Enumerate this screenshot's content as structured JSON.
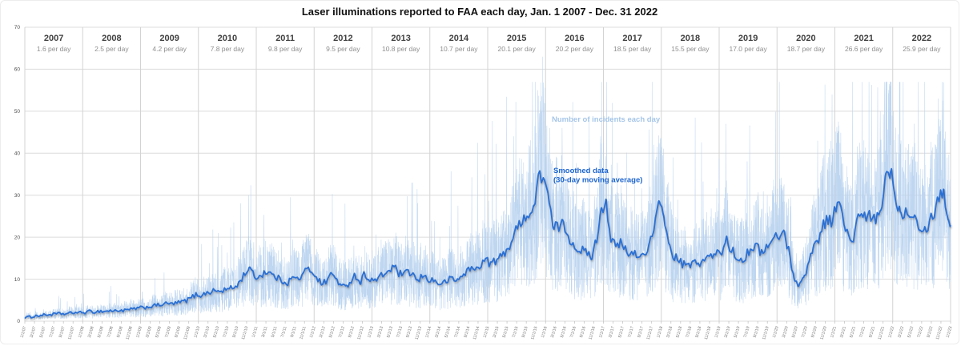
{
  "chart_data": {
    "type": "line",
    "title": "Laser illuminations reported to FAA each day, Jan. 1 2007 - Dec. 31 2022",
    "xlabel": "",
    "ylabel": "",
    "ylim": [
      0,
      70
    ],
    "yticks": [
      0,
      10,
      20,
      30,
      40,
      50,
      60,
      70
    ],
    "grid": true,
    "legend_position": "none",
    "years": [
      {
        "label": "2007",
        "avg": "1.6 per day"
      },
      {
        "label": "2008",
        "avg": "2.5 per day"
      },
      {
        "label": "2009",
        "avg": "4.2 per day"
      },
      {
        "label": "2010",
        "avg": "7.8 per day"
      },
      {
        "label": "2011",
        "avg": "9.8 per day"
      },
      {
        "label": "2012",
        "avg": "9.5 per day"
      },
      {
        "label": "2013",
        "avg": "10.8 per day"
      },
      {
        "label": "2014",
        "avg": "10.7 per day"
      },
      {
        "label": "2015",
        "avg": "20.1 per day"
      },
      {
        "label": "2016",
        "avg": "20.2 per day"
      },
      {
        "label": "2017",
        "avg": "18.5 per day"
      },
      {
        "label": "2018",
        "avg": "15.5 per day"
      },
      {
        "label": "2019",
        "avg": "17.0 per day"
      },
      {
        "label": "2020",
        "avg": "18.7 per day"
      },
      {
        "label": "2021",
        "avg": "26.6 per day"
      },
      {
        "label": "2022",
        "avg": "25.9 per day"
      }
    ],
    "annotations": {
      "daily_label": "Number of incidents each day",
      "smoothed_label_line1": "Smoothed data",
      "smoothed_label_line2": "(30-day moving average)"
    },
    "series": [
      {
        "name": "Number of incidents each day",
        "kind": "daily-raw",
        "color": "#b7d2ee"
      },
      {
        "name": "Smoothed data (30-day moving average)",
        "kind": "smoothed-line",
        "color": "#2a6fd4",
        "monthly_values": [
          0.9,
          1.1,
          1.3,
          1.4,
          1.5,
          1.6,
          1.7,
          1.8,
          1.7,
          1.9,
          2.1,
          2.0,
          2.1,
          2.3,
          2.2,
          2.4,
          2.3,
          2.5,
          2.4,
          2.6,
          2.5,
          2.7,
          2.9,
          3.1,
          3.2,
          3.4,
          3.6,
          3.8,
          4.0,
          4.2,
          4.1,
          4.3,
          4.6,
          4.9,
          5.6,
          6.3,
          6.2,
          6.6,
          7.0,
          7.3,
          7.0,
          7.5,
          7.7,
          8.1,
          9.2,
          11.2,
          12.7,
          10.8,
          10.4,
          11.6,
          11.8,
          10.8,
          10.2,
          9.6,
          9.2,
          10.4,
          10.0,
          10.8,
          12.4,
          12.0,
          10.6,
          8.8,
          9.6,
          11.2,
          10.4,
          8.4,
          8.0,
          9.6,
          11.0,
          9.2,
          11.4,
          9.8,
          9.6,
          10.4,
          11.2,
          12.0,
          13.0,
          11.4,
          11.0,
          11.6,
          11.2,
          9.2,
          11.0,
          10.0,
          9.8,
          9.2,
          8.8,
          9.6,
          10.2,
          9.6,
          10.6,
          11.8,
          12.6,
          12.2,
          13.6,
          14.6,
          13.8,
          14.2,
          15.0,
          16.5,
          18.0,
          20.5,
          23.0,
          25.5,
          24.5,
          27.0,
          33.5,
          35.5,
          30.0,
          22.0,
          22.5,
          23.0,
          21.0,
          18.5,
          17.5,
          17.0,
          16.0,
          15.5,
          19.0,
          27.0,
          28.5,
          20.0,
          17.5,
          18.5,
          17.0,
          15.5,
          16.5,
          15.0,
          16.5,
          18.0,
          22.0,
          27.5,
          26.0,
          18.0,
          15.5,
          14.5,
          13.5,
          13.0,
          14.0,
          13.5,
          14.5,
          15.0,
          15.5,
          16.0,
          16.5,
          19.5,
          17.0,
          15.5,
          14.5,
          15.5,
          17.5,
          18.0,
          16.5,
          17.5,
          18.0,
          20.0,
          20.5,
          21.0,
          16.0,
          10.5,
          8.5,
          10.0,
          14.0,
          17.5,
          19.5,
          23.0,
          24.5,
          23.5,
          29.5,
          25.0,
          21.0,
          18.0,
          24.0,
          25.0,
          24.5,
          25.0,
          23.5,
          27.0,
          34.0,
          36.5,
          30.0,
          25.5,
          26.5,
          25.5,
          26.5,
          22.5,
          21.5,
          23.5,
          26.0,
          29.5,
          31.5,
          23.5
        ]
      }
    ],
    "notable_spikes": [
      {
        "month_index": 46,
        "value": 30
      },
      {
        "month_index": 66,
        "value": 28
      },
      {
        "month_index": 80,
        "value": 33
      },
      {
        "month_index": 95,
        "value": 35
      },
      {
        "month_index": 101,
        "value": 44
      },
      {
        "month_index": 106,
        "value": 55
      },
      {
        "month_index": 107,
        "value": 63
      },
      {
        "month_index": 111,
        "value": 46
      },
      {
        "month_index": 119,
        "value": 44
      },
      {
        "month_index": 130,
        "value": 42
      },
      {
        "month_index": 134,
        "value": 39
      },
      {
        "month_index": 145,
        "value": 47
      },
      {
        "month_index": 164,
        "value": 43
      },
      {
        "month_index": 167,
        "value": 54
      },
      {
        "month_index": 177,
        "value": 50
      },
      {
        "month_index": 179,
        "value": 56
      },
      {
        "month_index": 184,
        "value": 47
      },
      {
        "month_index": 189,
        "value": 53
      }
    ],
    "x_tick_labels": [
      "1/1/07",
      "3/1/07",
      "5/1/07",
      "7/1/07",
      "9/1/07",
      "11/1/07",
      "1/1/08",
      "3/1/08",
      "5/1/08",
      "7/1/08",
      "9/1/08",
      "11/1/08",
      "1/1/09",
      "3/1/09",
      "5/1/09",
      "7/1/09",
      "9/1/09",
      "11/1/09",
      "1/1/10",
      "3/1/10",
      "5/1/10",
      "7/1/10",
      "9/1/10",
      "11/1/10",
      "1/1/11",
      "3/1/11",
      "5/1/11",
      "7/1/11",
      "9/1/11",
      "11/1/11",
      "1/1/12",
      "3/1/12",
      "5/1/12",
      "7/1/12",
      "9/1/12",
      "11/1/12",
      "1/1/13",
      "3/1/13",
      "5/1/13",
      "7/1/13",
      "9/1/13",
      "11/1/13",
      "1/1/14",
      "3/1/14",
      "5/1/14",
      "7/1/14",
      "9/1/14",
      "11/1/14",
      "1/1/15",
      "3/1/15",
      "5/1/15",
      "7/1/15",
      "9/1/15",
      "11/1/15",
      "1/1/16",
      "3/1/16",
      "5/1/16",
      "7/1/16",
      "9/1/16",
      "11/1/16",
      "1/1/17",
      "3/1/17",
      "5/1/17",
      "7/1/17",
      "9/1/17",
      "11/1/17",
      "1/1/18",
      "3/1/18",
      "5/1/18",
      "7/1/18",
      "9/1/18",
      "11/1/18",
      "1/1/19",
      "3/1/19",
      "5/1/19",
      "7/1/19",
      "9/1/19",
      "11/1/19",
      "1/1/20",
      "3/1/20",
      "5/1/20",
      "7/1/20",
      "9/1/20",
      "11/1/20",
      "1/1/21",
      "3/1/21",
      "5/1/21",
      "7/1/21",
      "9/1/21",
      "11/1/21",
      "1/1/22",
      "3/1/22",
      "5/1/22",
      "7/1/22",
      "9/1/22",
      "11/1/22",
      "1/1/23"
    ],
    "colors": {
      "daily_series": "#b7d2ee",
      "smoothed_series": "#2a6fd4",
      "daily_annotation": "#a6c6e8",
      "smoothed_annotation": "#1e66d0",
      "gridline": "#dcdcdc",
      "year_gridline": "#d3d3d3",
      "tick": "#c0c0c0",
      "year_label": "#404040",
      "avg_label": "#8f8f8f",
      "y_tick_label": "#4d4d4d",
      "x_tick_label": "#767676",
      "title": "#111111"
    }
  }
}
